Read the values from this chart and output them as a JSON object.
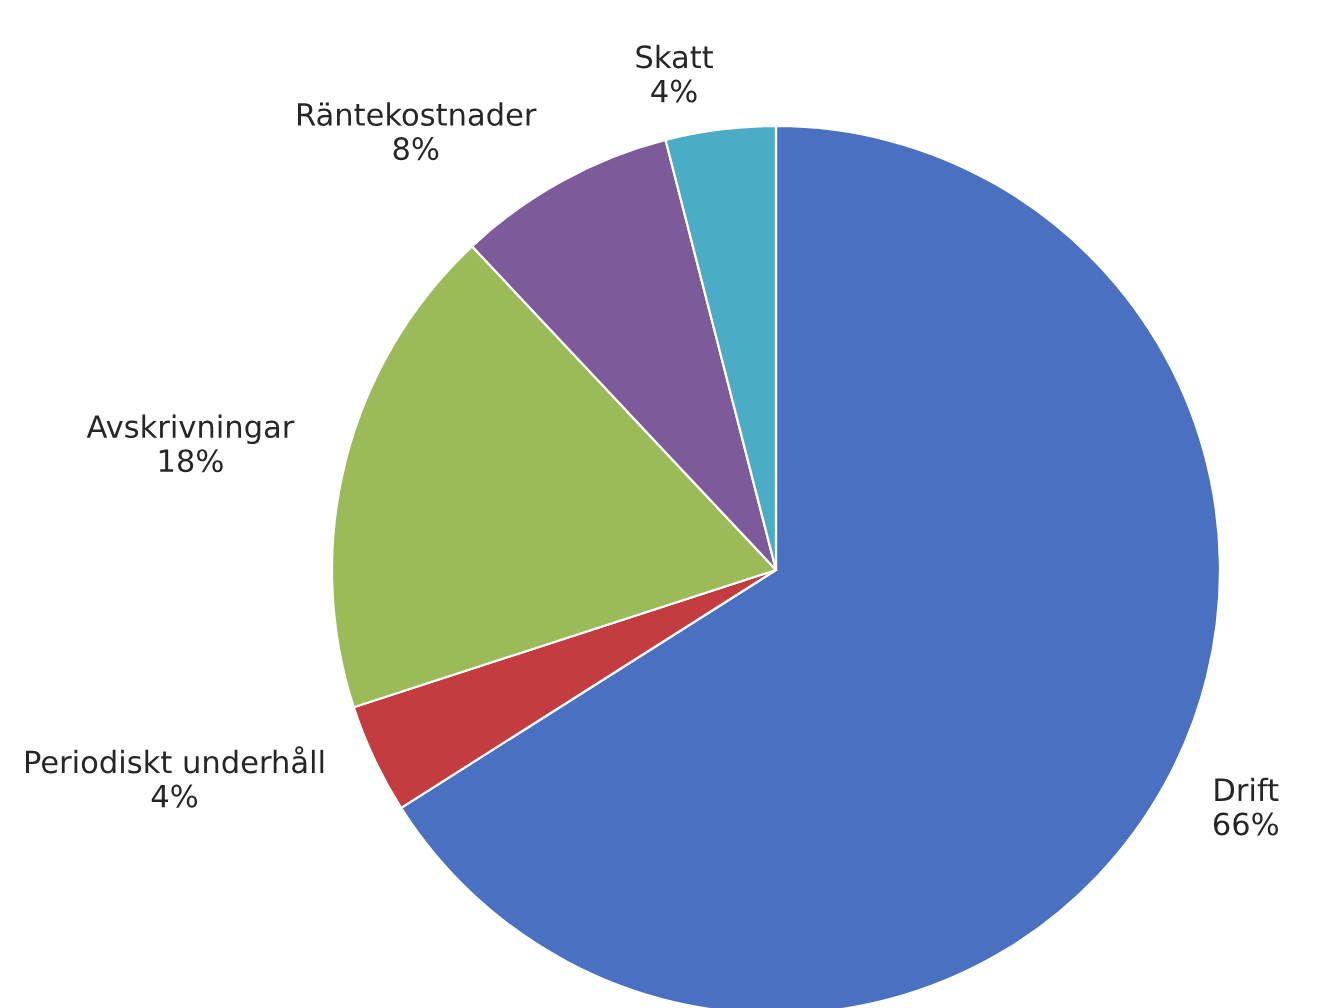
{
  "chart_data": {
    "type": "pie",
    "categories": [
      "Drift",
      "Periodiskt underhåll",
      "Avskrivningar",
      "Räntekostnader",
      "Skatt"
    ],
    "values": [
      66,
      4,
      18,
      8,
      4
    ],
    "value_labels": [
      "66%",
      "4%",
      "18%",
      "8%",
      "4%"
    ],
    "colors": [
      "#4a70c2",
      "#c43c3f",
      "#9bbb59",
      "#7d5a99",
      "#4bacc6"
    ]
  }
}
